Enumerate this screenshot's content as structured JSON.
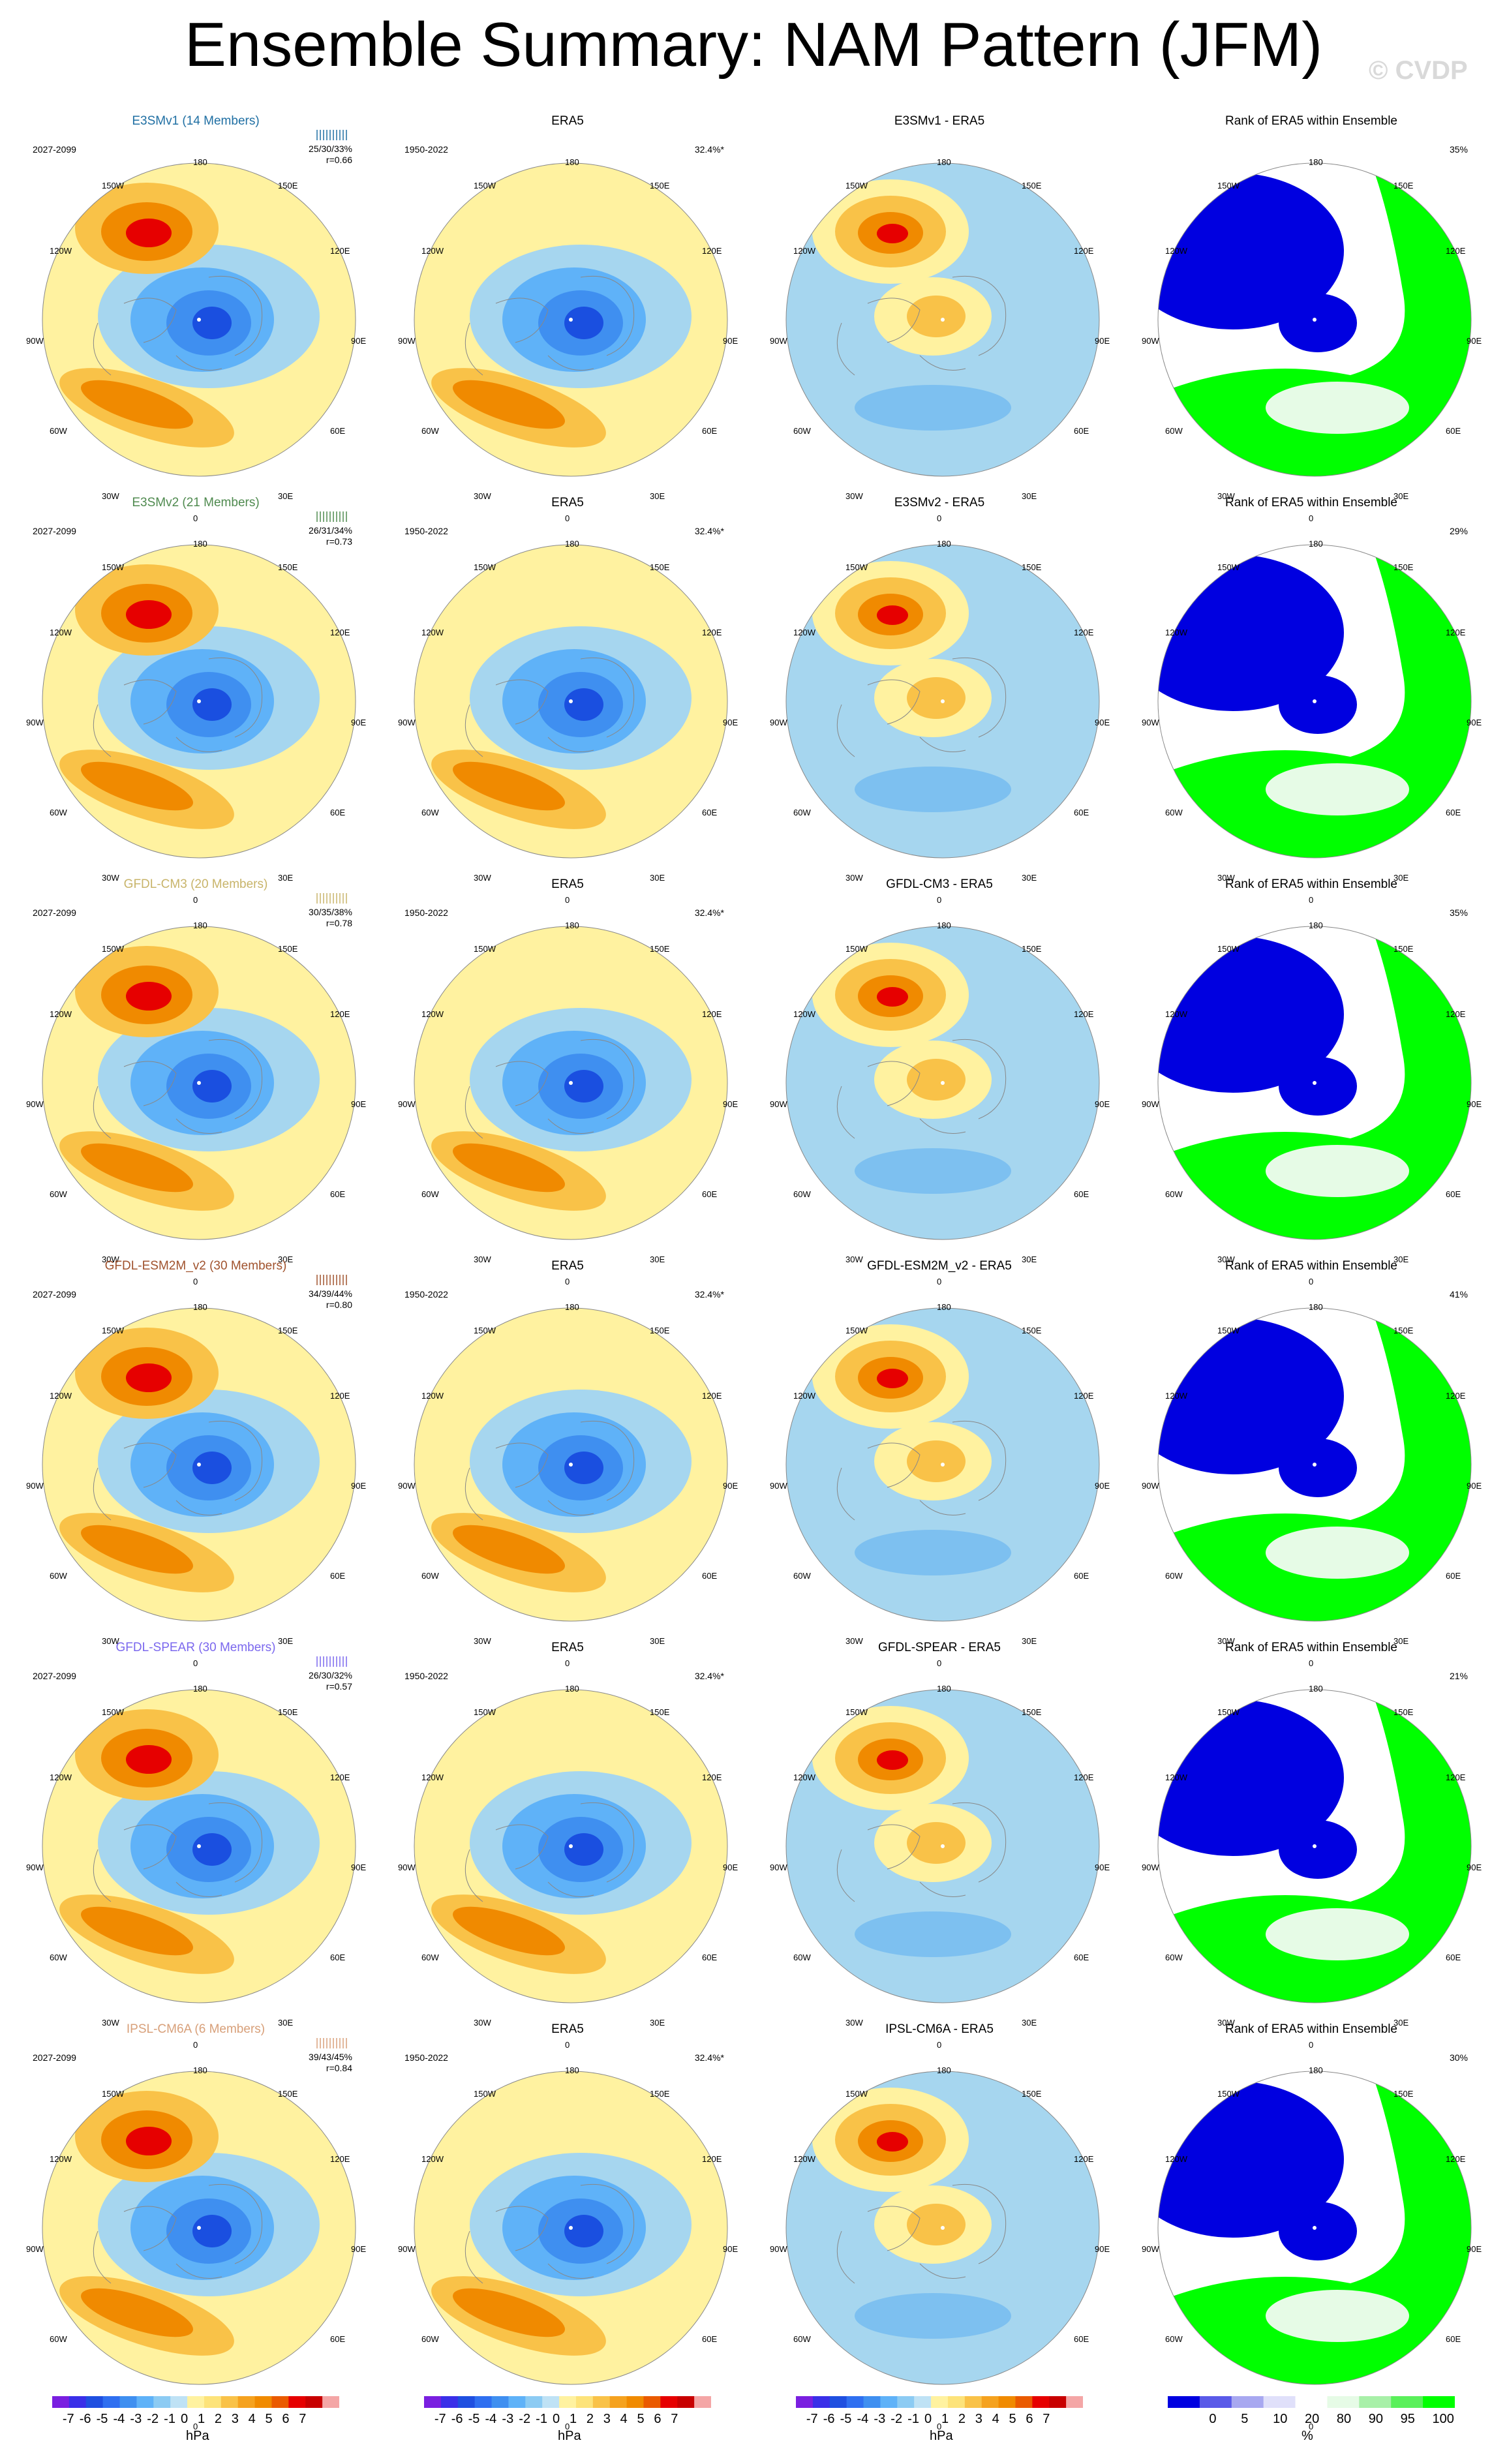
{
  "header": {
    "title": "Ensemble Summary: NAM Pattern (JFM)",
    "watermark": "© CVDP"
  },
  "longitude_labels": [
    "180",
    "150E",
    "120E",
    "90E",
    "60E",
    "30E",
    "0",
    "30W",
    "60W",
    "90W",
    "120W",
    "150W"
  ],
  "colors": {
    "e3smv1": "#1f6fa3",
    "e3smv2": "#4f8a4f",
    "gfdl_cm3": "#c8b46a",
    "gfdl_esm2m": "#a0522d",
    "gfdl_spear": "#7b68ee",
    "ipsl": "#d8a07a",
    "ocean": "#a6d6ef",
    "pos_weak": "#fff2a0",
    "pos_mid": "#f9c248",
    "pos_strong": "#f08a00",
    "pos_max": "#e60000",
    "neg_mid": "#3f8ff0",
    "neg_strong": "#1a4fe0",
    "rank_low": "#0000e0",
    "rank_high": "#00ff00"
  },
  "rows": [
    {
      "model": "E3SMv1 (14 Members)",
      "years": "2027-2099",
      "pct": "25/30/33%",
      "r": "r=0.66",
      "diff": "E3SMv1 - ERA5",
      "rank_pct": "35%",
      "color_key": "e3smv1"
    },
    {
      "model": "E3SMv2 (21 Members)",
      "years": "2027-2099",
      "pct": "26/31/34%",
      "r": "r=0.73",
      "diff": "E3SMv2 - ERA5",
      "rank_pct": "29%",
      "color_key": "e3smv2"
    },
    {
      "model": "GFDL-CM3 (20 Members)",
      "years": "2027-2099",
      "pct": "30/35/38%",
      "r": "r=0.78",
      "diff": "GFDL-CM3 - ERA5",
      "rank_pct": "35%",
      "color_key": "gfdl_cm3"
    },
    {
      "model": "GFDL-ESM2M_v2 (30 Members)",
      "years": "2027-2099",
      "pct": "34/39/44%",
      "r": "r=0.80",
      "diff": "GFDL-ESM2M_v2 - ERA5",
      "rank_pct": "41%",
      "color_key": "gfdl_esm2m"
    },
    {
      "model": "GFDL-SPEAR (30 Members)",
      "years": "2027-2099",
      "pct": "26/30/32%",
      "r": "r=0.57",
      "diff": "GFDL-SPEAR - ERA5",
      "rank_pct": "21%",
      "color_key": "gfdl_spear"
    },
    {
      "model": "IPSL-CM6A (6 Members)",
      "years": "2027-2099",
      "pct": "39/43/45%",
      "r": "r=0.84",
      "diff": "IPSL-CM6A - ERA5",
      "rank_pct": "30%",
      "color_key": "ipsl"
    }
  ],
  "era5": {
    "title": "ERA5",
    "years": "1950-2022",
    "pct": "32.4%*"
  },
  "rank_title": "Rank of ERA5 within Ensemble",
  "colorbars": {
    "hpa": {
      "labels": [
        "-7",
        "-6",
        "-5",
        "-4",
        "-3",
        "-2",
        "-1",
        "0",
        "1",
        "2",
        "3",
        "4",
        "5",
        "6",
        "7"
      ],
      "unit": "hPa",
      "colors": [
        "#7a1fe0",
        "#3a2fe8",
        "#1f4fe0",
        "#2f6ff0",
        "#3f8ff0",
        "#5fb2f8",
        "#8ccbf3",
        "#bfe2f5",
        "#fff2a0",
        "#fde37a",
        "#f9c248",
        "#f5a21f",
        "#f08a00",
        "#ea5a00",
        "#e60000",
        "#c80000",
        "#f4a6a6"
      ]
    },
    "rank": {
      "labels": [
        "0",
        "5",
        "10",
        "20",
        "80",
        "90",
        "95",
        "100"
      ],
      "unit": "%",
      "colors": [
        "#0000e0",
        "#5a5ae8",
        "#a8a8f0",
        "#e0e0fa",
        "#ffffff",
        "#e6fbe6",
        "#a8f0a8",
        "#5af05a",
        "#00ff00"
      ]
    }
  }
}
